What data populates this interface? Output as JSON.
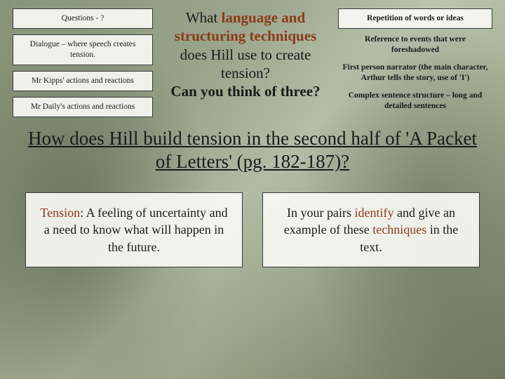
{
  "left_boxes": [
    "Questions - ?",
    "Dialogue – where speech creates tension.",
    "Mr Kipps' actions and reactions",
    "Mr Daily's actions and reactions"
  ],
  "center_question": {
    "line1_a": "What ",
    "line1_b": "language and structuring techniques",
    "line1_c": " does Hill use to create tension?",
    "line2": "Can you think of three?"
  },
  "right_items": [
    {
      "text": "Repetition of words or ideas",
      "boxed": true
    },
    {
      "text": "Reference to events that were foreshadowed",
      "boxed": false
    },
    {
      "text": "First person narrator (the main character, Arthur tells the story, use of 'I')",
      "boxed": false
    },
    {
      "text": "Complex sentence structure – long and detailed sentences",
      "boxed": false
    }
  ],
  "main_title": "How does Hill build tension in the second half of 'A Packet of Letters' (pg. 182-187)?",
  "bottom_left": {
    "pre": "Tension",
    "post": ": A feeling of uncertainty and a need to know what will happen in the future."
  },
  "bottom_right": {
    "a": "In your pairs ",
    "b": "identify",
    "c": " and give an example of these ",
    "d": "techniques",
    "e": " in the text."
  }
}
